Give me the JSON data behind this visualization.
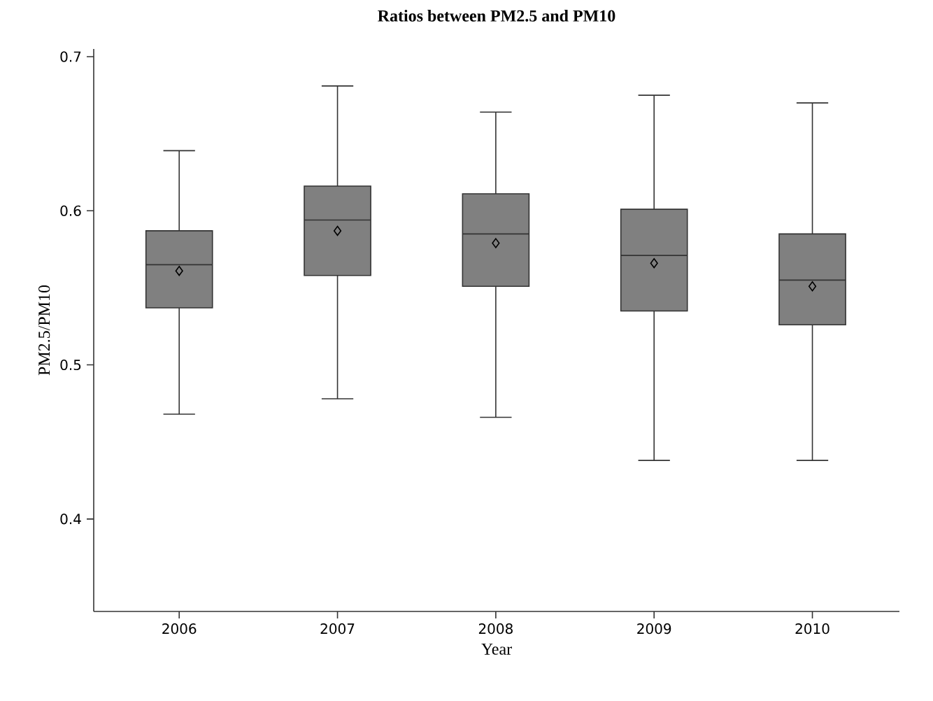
{
  "chart_data": {
    "type": "box",
    "title": "Ratios between PM2.5 and PM10",
    "xlabel": "Year",
    "ylabel": "PM2.5/PM10",
    "categories": [
      "2006",
      "2007",
      "2008",
      "2009",
      "2010"
    ],
    "boxes": [
      {
        "low": 0.468,
        "q1": 0.537,
        "median": 0.565,
        "q3": 0.587,
        "high": 0.639,
        "mean": 0.561
      },
      {
        "low": 0.478,
        "q1": 0.558,
        "median": 0.594,
        "q3": 0.616,
        "high": 0.681,
        "mean": 0.587
      },
      {
        "low": 0.466,
        "q1": 0.551,
        "median": 0.585,
        "q3": 0.611,
        "high": 0.664,
        "mean": 0.579
      },
      {
        "low": 0.438,
        "q1": 0.535,
        "median": 0.571,
        "q3": 0.601,
        "high": 0.675,
        "mean": 0.566
      },
      {
        "low": 0.438,
        "q1": 0.526,
        "median": 0.555,
        "q3": 0.585,
        "high": 0.67,
        "mean": 0.551
      }
    ],
    "color": "#808080",
    "marker": "diamond",
    "ylim": [
      0.34,
      0.705
    ],
    "yticks": [
      0.4,
      0.5,
      0.6,
      0.7
    ]
  }
}
